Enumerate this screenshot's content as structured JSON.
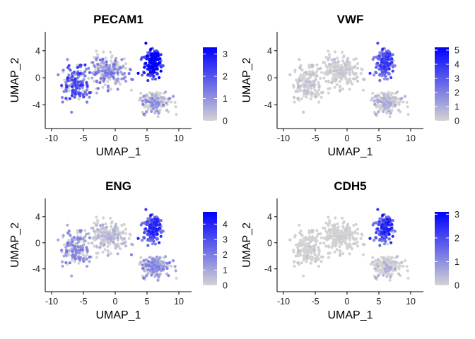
{
  "chart_data": [
    {
      "type": "scatter",
      "title": "PECAM1",
      "xlabel": "UMAP_1",
      "ylabel": "UMAP_2",
      "xlim": [
        -11,
        12
      ],
      "ylim": [
        -7.5,
        6.8
      ],
      "xticks": [
        "-10",
        "-5",
        "0",
        "5",
        "10"
      ],
      "yticks": [
        "-4",
        "0",
        "4"
      ],
      "color_low": "#d3d3d3",
      "color_high": "#0000ff",
      "expr_max": 3.3,
      "legend_ticks": [
        "0",
        "1",
        "2",
        "3"
      ],
      "legend_placement": "right",
      "grid": false,
      "region_expression": {
        "left_arm": 1.6,
        "center_top": 1.0,
        "right_cluster": 2.6,
        "bottom_cluster": 0.8
      }
    },
    {
      "type": "scatter",
      "title": "VWF",
      "xlabel": "UMAP_1",
      "ylabel": "UMAP_2",
      "xlim": [
        -11,
        12
      ],
      "ylim": [
        -7.5,
        6.8
      ],
      "xticks": [
        "-10",
        "-5",
        "0",
        "5",
        "10"
      ],
      "yticks": [
        "-4",
        "0",
        "4"
      ],
      "color_low": "#d3d3d3",
      "color_high": "#0000ff",
      "expr_max": 5.2,
      "legend_ticks": [
        "0",
        "1",
        "2",
        "3",
        "4",
        "5"
      ],
      "legend_placement": "right",
      "grid": false,
      "region_expression": {
        "left_arm": 0.4,
        "center_top": 0.3,
        "right_cluster": 2.5,
        "bottom_cluster": 0.7
      }
    },
    {
      "type": "scatter",
      "title": "ENG",
      "xlabel": "UMAP_1",
      "ylabel": "UMAP_2",
      "xlim": [
        -11,
        12
      ],
      "ylim": [
        -7.5,
        6.8
      ],
      "xticks": [
        "-10",
        "-5",
        "0",
        "5",
        "10"
      ],
      "yticks": [
        "-4",
        "0",
        "4"
      ],
      "color_low": "#d3d3d3",
      "color_high": "#0000ff",
      "expr_max": 4.8,
      "legend_ticks": [
        "0",
        "1",
        "2",
        "3",
        "4"
      ],
      "legend_placement": "right",
      "grid": false,
      "region_expression": {
        "left_arm": 1.3,
        "center_top": 0.6,
        "right_cluster": 2.6,
        "bottom_cluster": 1.3
      }
    },
    {
      "type": "scatter",
      "title": "CDH5",
      "xlabel": "UMAP_1",
      "ylabel": "UMAP_2",
      "xlim": [
        -11,
        12
      ],
      "ylim": [
        -7.5,
        6.8
      ],
      "xticks": [
        "-10",
        "-5",
        "0",
        "5",
        "10"
      ],
      "yticks": [
        "-4",
        "0",
        "4"
      ],
      "color_low": "#d3d3d3",
      "color_high": "#0000ff",
      "expr_max": 3.1,
      "legend_ticks": [
        "0",
        "1",
        "2",
        "3"
      ],
      "legend_placement": "right",
      "grid": false,
      "region_expression": {
        "left_arm": 0.15,
        "center_top": 0.1,
        "right_cluster": 1.7,
        "bottom_cluster": 0.4
      }
    }
  ],
  "umap_regions": [
    {
      "name": "left_arm",
      "points": 150,
      "cx": -6.2,
      "cy": -0.8,
      "sx": 1.8,
      "sy": 2.2
    },
    {
      "name": "center_top",
      "points": 220,
      "cx": -1.2,
      "cy": 1.0,
      "sx": 2.4,
      "sy": 1.8
    },
    {
      "name": "right_cluster",
      "points": 190,
      "cx": 5.8,
      "cy": 2.2,
      "sx": 1.1,
      "sy": 1.7
    },
    {
      "name": "bottom_cluster",
      "points": 170,
      "cx": 6.4,
      "cy": -3.6,
      "sx": 1.9,
      "sy": 1.4
    }
  ]
}
